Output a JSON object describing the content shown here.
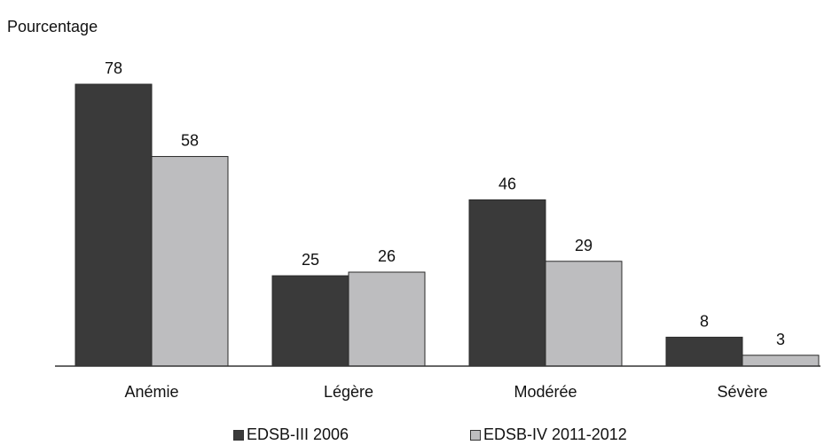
{
  "chart_data": {
    "type": "bar",
    "ylabel": "Pourcentage",
    "categories": [
      "Anémie",
      "Légère",
      "Modérée",
      "Sévère"
    ],
    "series": [
      {
        "name": "EDSB-III 2006",
        "color": "#3a3a3a",
        "values": [
          78,
          25,
          46,
          8
        ]
      },
      {
        "name": "EDSB-IV 2011-2012",
        "color": "#bdbdbf",
        "values": [
          58,
          26,
          29,
          3
        ]
      }
    ],
    "ylim": [
      0,
      80
    ],
    "grid": false,
    "data_labels": true,
    "legend_position": "bottom"
  }
}
